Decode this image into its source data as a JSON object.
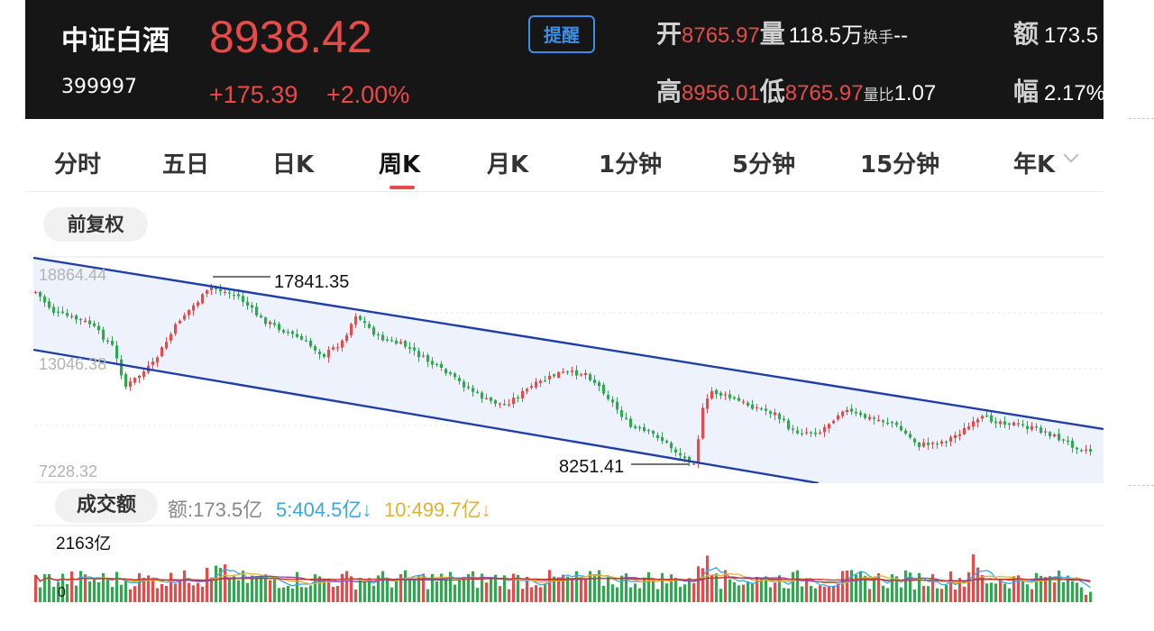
{
  "header": {
    "name": "中证白酒",
    "code": "399997",
    "price": "8938.42",
    "change": "+175.39",
    "change_pct": "+2.00%",
    "alert_label": "提醒",
    "open_label": "开",
    "open": "8765.97",
    "volume_label": "量",
    "volume": "118.5万",
    "turnover_label": "换手",
    "turnover": "--",
    "amount_label": "额",
    "amount": "173.5",
    "high_label": "高",
    "high": "8956.01",
    "low_label": "低",
    "low": "8765.97",
    "vol_ratio_label": "量比",
    "vol_ratio": "1.07",
    "amplitude_label": "幅",
    "amplitude": "2.17%"
  },
  "tabs": [
    {
      "label": "分时"
    },
    {
      "label": "五日"
    },
    {
      "label": "日K"
    },
    {
      "label": "周K"
    },
    {
      "label": "月K"
    },
    {
      "label": "1分钟"
    },
    {
      "label": "5分钟"
    },
    {
      "label": "15分钟"
    },
    {
      "label": "年K"
    }
  ],
  "active_tab": "周K",
  "adjust_label": "前复权",
  "kline": {
    "y_labels": [
      "18864.44",
      "13046.38",
      "7228.32"
    ],
    "max_label": "17841.35",
    "min_label": "8251.41"
  },
  "volume": {
    "pill_label": "成交额",
    "amount_text": "额:173.5亿",
    "ma5_text": "5:404.5亿↓",
    "ma10_text": "10:499.7亿↓",
    "max_label": "2163亿",
    "zero_label": "0"
  },
  "colors": {
    "up": "#e84a4a",
    "down": "#2fa84f",
    "channel": "#1f3fa6",
    "ma5": "#3aa8e0",
    "ma10": "#e3b130",
    "ma20": "#8e44ad",
    "ma60": "#c0392b"
  },
  "icons": [
    "chevron-down-icon"
  ]
}
